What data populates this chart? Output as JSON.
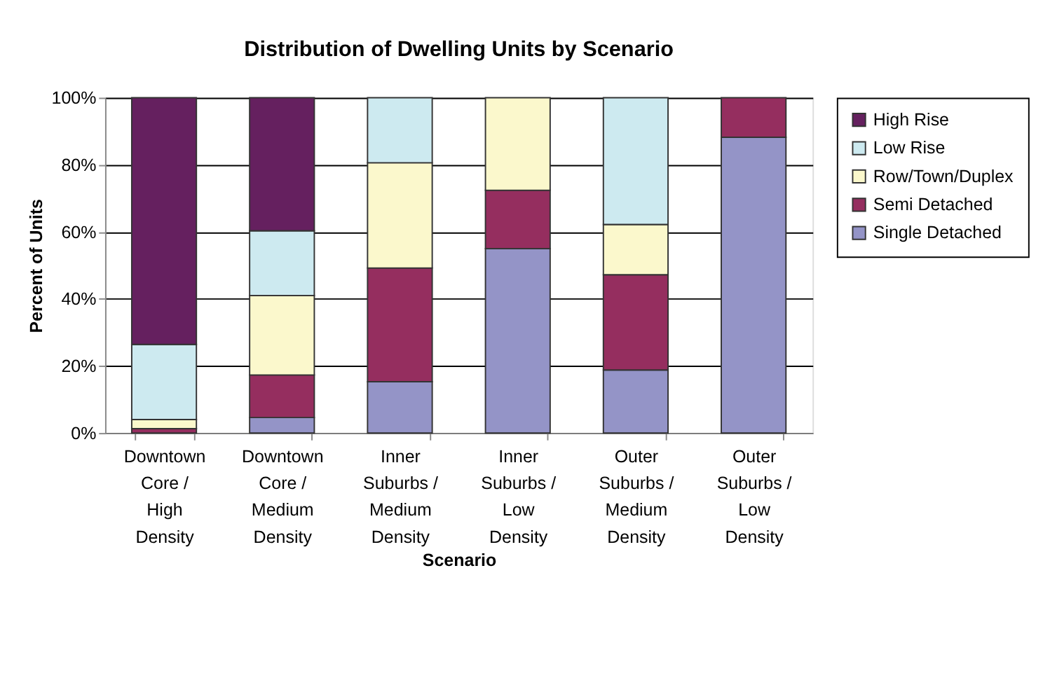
{
  "chart_data": {
    "type": "bar",
    "stacked": true,
    "title": "Distribution of Dwelling Units by Scenario",
    "xlabel": "Scenario",
    "ylabel": "Percent of Units",
    "categories": [
      "Downtown Core / High Density",
      "Downtown Core / Medium Density",
      "Inner Suburbs / Medium Density",
      "Inner Suburbs / Low Density",
      "Outer Suburbs / Medium Density",
      "Outer Suburbs / Low Density"
    ],
    "series": [
      {
        "name": "Single Detached",
        "color": "#9494c7",
        "values": [
          null,
          4.6,
          15.3,
          55.0,
          18.8,
          88.2
        ]
      },
      {
        "name": "Semi Detached",
        "color": "#952e5f",
        "values": [
          1.3,
          12.7,
          33.9,
          17.4,
          28.4,
          11.8
        ]
      },
      {
        "name": "Row/Town/Duplex",
        "color": "#fbf8cc",
        "values": [
          2.7,
          23.7,
          31.4,
          27.6,
          15.0,
          null
        ]
      },
      {
        "name": "Low Rise",
        "color": "#cdeaf0",
        "values": [
          22.4,
          19.3,
          19.4,
          null,
          37.8,
          null
        ]
      },
      {
        "name": "High Rise",
        "color": "#65205f",
        "values": [
          73.6,
          39.7,
          null,
          null,
          null,
          null
        ]
      }
    ],
    "ylim": [
      0,
      100
    ],
    "yticks": [
      {
        "value": 0,
        "label": "0%"
      },
      {
        "value": 20,
        "label": "20%"
      },
      {
        "value": 40,
        "label": "40%"
      },
      {
        "value": 60,
        "label": "60%"
      },
      {
        "value": 80,
        "label": "80%"
      },
      {
        "value": 100,
        "label": "100%"
      }
    ],
    "grid": "y",
    "legend": "right"
  }
}
